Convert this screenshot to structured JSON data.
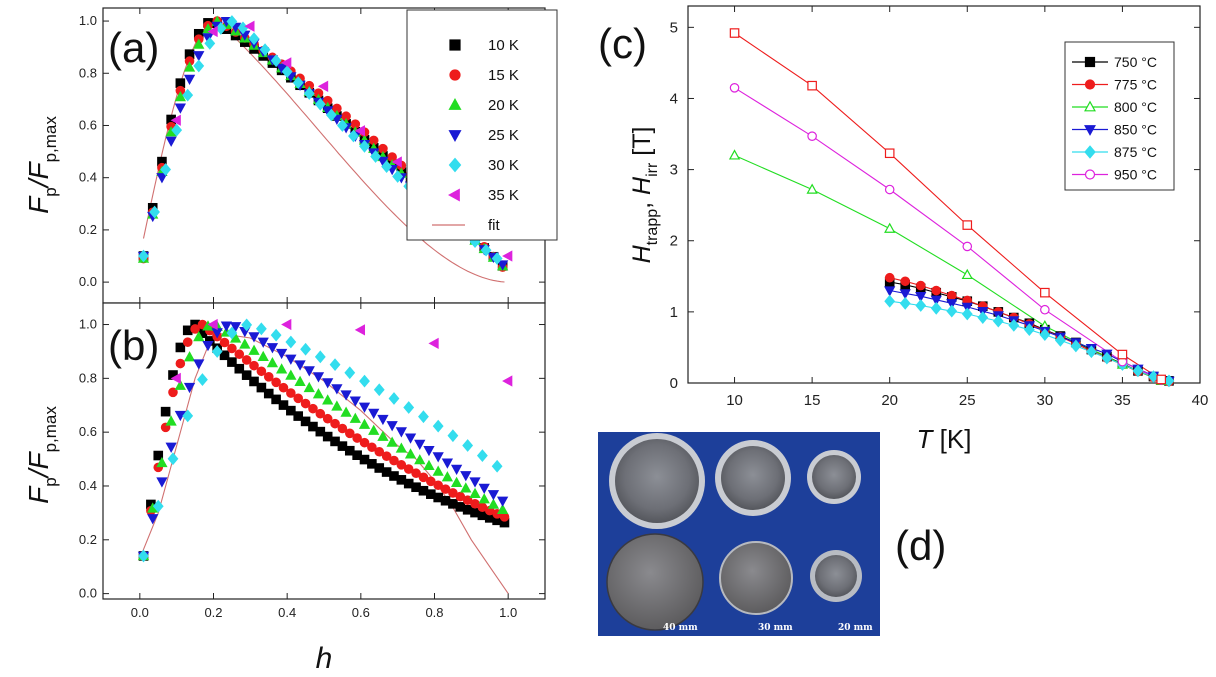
{
  "panel_labels": {
    "a": "(a)",
    "b": "(b)",
    "c": "(c)",
    "d": "(d)"
  },
  "ab_axes": {
    "xlabel": "h",
    "ylabel_main": "F",
    "ylabel_sub1": "p",
    "ylabel_mid": "/F",
    "ylabel_sub2": "p,max"
  },
  "c_axes": {
    "xlabel_main": "T",
    "xlabel_unit": " [K]",
    "ylabel_main1": "H",
    "ylabel_sub1": "trapp",
    "ylabel_mid": ", ",
    "ylabel_main2": "H",
    "ylabel_sub2": "irr",
    "ylabel_unit": " [T]"
  },
  "photo": {
    "captions": [
      "40 mm",
      "30 mm",
      "20 mm"
    ],
    "background": "#1d3f9a"
  },
  "chart_data": [
    {
      "id": "a",
      "type": "scatter",
      "xlim": [
        -0.1,
        1.1
      ],
      "ylim": [
        -0.08,
        1.05
      ],
      "xticks": [
        "0.0",
        "0.2",
        "0.4",
        "0.6",
        "0.8",
        "1.0"
      ],
      "yticks": [
        "0.0",
        "0.2",
        "0.4",
        "0.6",
        "0.8",
        "1.0"
      ],
      "legend": {
        "placement": "top-right",
        "entries": [
          {
            "label": "10 K",
            "marker": "square",
            "color": "#000000"
          },
          {
            "label": "15 K",
            "marker": "circle",
            "color": "#ee1c1c"
          },
          {
            "label": "20 K",
            "marker": "triangle-up",
            "color": "#22dd22"
          },
          {
            "label": "25 K",
            "marker": "triangle-down",
            "color": "#1a1ad4"
          },
          {
            "label": "30 K",
            "marker": "diamond",
            "color": "#33ddee"
          },
          {
            "label": "35 K",
            "marker": "triangle-left",
            "color": "#dd22dd"
          },
          {
            "label": "fit",
            "marker": "line",
            "color": "#d07070"
          }
        ]
      },
      "series": [
        {
          "name": "10 K",
          "color": "#000000",
          "marker": "square",
          "rise_end": 0.2,
          "start": 0.1,
          "end": 0.04,
          "p": 2.1,
          "step": 0.025
        },
        {
          "name": "15 K",
          "color": "#ee1c1c",
          "marker": "circle",
          "rise_end": 0.21,
          "start": 0.09,
          "end": 0.03,
          "p": 2.3,
          "step": 0.025
        },
        {
          "name": "20 K",
          "color": "#22dd22",
          "marker": "triangle-up",
          "rise_end": 0.22,
          "start": 0.09,
          "end": 0.04,
          "p": 2.0,
          "step": 0.025
        },
        {
          "name": "25 K",
          "color": "#1a1ad4",
          "marker": "triangle-down",
          "rise_end": 0.24,
          "start": 0.1,
          "end": 0.05,
          "p": 1.8,
          "step": 0.025
        },
        {
          "name": "30 K",
          "color": "#33ddee",
          "marker": "diamond",
          "rise_end": 0.26,
          "start": 0.1,
          "end": 0.06,
          "p": 1.65,
          "step": 0.03
        },
        {
          "name": "35 K",
          "color": "#dd22dd",
          "marker": "triangle-left",
          "x": [
            0.1,
            0.2,
            0.3,
            0.4,
            0.5,
            0.6,
            0.7,
            0.8,
            0.9,
            1.0
          ],
          "y": [
            0.62,
            0.96,
            0.98,
            0.84,
            0.75,
            0.58,
            0.46,
            0.33,
            0.22,
            0.1
          ]
        }
      ],
      "fit": {
        "name": "fit",
        "color": "#d07070",
        "peak": 0.21,
        "p": 2.6
      }
    },
    {
      "id": "b",
      "type": "scatter",
      "xlim": [
        -0.1,
        1.1
      ],
      "ylim": [
        -0.02,
        1.08
      ],
      "xticks": [
        "0.0",
        "0.2",
        "0.4",
        "0.6",
        "0.8",
        "1.0"
      ],
      "yticks": [
        "0.0",
        "0.2",
        "0.4",
        "0.6",
        "0.8",
        "1.0"
      ],
      "series": [
        {
          "name": "10 K",
          "color": "#000000",
          "marker": "square",
          "rise_end": 0.15,
          "start": 0.14,
          "end": 0.26,
          "p": 1.2,
          "step": 0.02
        },
        {
          "name": "15 K",
          "color": "#ee1c1c",
          "marker": "circle",
          "rise_end": 0.17,
          "start": 0.14,
          "end": 0.28,
          "p": 1.45,
          "step": 0.02
        },
        {
          "name": "20 K",
          "color": "#22dd22",
          "marker": "triangle-up",
          "rise_end": 0.2,
          "start": 0.14,
          "end": 0.3,
          "p": 1.75,
          "step": 0.025
        },
        {
          "name": "25 K",
          "color": "#1a1ad4",
          "marker": "triangle-down",
          "rise_end": 0.25,
          "start": 0.14,
          "end": 0.33,
          "p": 2.0,
          "step": 0.025
        },
        {
          "name": "30 K",
          "color": "#33ddee",
          "marker": "diamond",
          "rise_end": 0.3,
          "start": 0.14,
          "end": 0.44,
          "p": 2.3,
          "step": 0.04
        },
        {
          "name": "35 K",
          "color": "#dd22dd",
          "marker": "triangle-left",
          "x": [
            0.1,
            0.2,
            0.4,
            0.6,
            0.8,
            1.0
          ],
          "y": [
            0.8,
            1.0,
            1.0,
            0.98,
            0.93,
            0.79
          ]
        }
      ],
      "fit": {
        "name": "fit",
        "color": "#d07070",
        "x": [
          0.0,
          0.05,
          0.1,
          0.15,
          0.2,
          0.3,
          0.4,
          0.5,
          0.6,
          0.7,
          0.75,
          0.8,
          0.85,
          0.9,
          0.95,
          1.0
        ],
        "y": [
          0.13,
          0.3,
          0.55,
          0.8,
          0.97,
          0.95,
          0.88,
          0.79,
          0.68,
          0.55,
          0.5,
          0.42,
          0.32,
          0.2,
          0.1,
          0.0
        ]
      }
    },
    {
      "id": "c",
      "type": "line",
      "xlim": [
        7,
        40
      ],
      "ylim": [
        0,
        5.3
      ],
      "xticks": [
        10,
        15,
        20,
        25,
        30,
        35,
        40
      ],
      "yticks": [
        0,
        1,
        2,
        3,
        4,
        5
      ],
      "legend": {
        "placement": "top-right"
      },
      "series": [
        {
          "name": "750 °C",
          "color": "#000000",
          "marker": "square",
          "filled": true,
          "x": [
            20,
            21,
            22,
            23,
            24,
            25,
            26,
            27,
            28,
            29,
            30,
            31,
            32,
            33,
            34,
            35,
            36,
            37,
            38
          ],
          "y": [
            1.42,
            1.38,
            1.33,
            1.27,
            1.21,
            1.15,
            1.08,
            1.0,
            0.92,
            0.84,
            0.75,
            0.66,
            0.57,
            0.47,
            0.37,
            0.27,
            0.17,
            0.09,
            0.03
          ]
        },
        {
          "name": "775 °C",
          "color": "#ee1c1c",
          "marker": "circle",
          "filled": true,
          "x": [
            20,
            21,
            22,
            23,
            24,
            25,
            26,
            27,
            28,
            29,
            30,
            31,
            32,
            33,
            34,
            35,
            36,
            37,
            38
          ],
          "y": [
            1.48,
            1.43,
            1.37,
            1.3,
            1.23,
            1.16,
            1.08,
            1.0,
            0.92,
            0.83,
            0.74,
            0.65,
            0.55,
            0.45,
            0.35,
            0.26,
            0.16,
            0.08,
            0.02
          ]
        },
        {
          "name": "800 °C",
          "color": "#22dd22",
          "marker": "triangle-up",
          "filled": false,
          "x": [
            10,
            15,
            20,
            25,
            30,
            35,
            37.5
          ],
          "y": [
            3.2,
            2.72,
            2.17,
            1.52,
            0.8,
            0.26,
            0.03
          ]
        },
        {
          "name": "850 °C",
          "color": "#1a1ad4",
          "marker": "triangle-down",
          "filled": true,
          "x": [
            20,
            21,
            22,
            23,
            24,
            25,
            26,
            27,
            28,
            29,
            30,
            31,
            32,
            33,
            34,
            35,
            36,
            37,
            38
          ],
          "y": [
            1.3,
            1.26,
            1.22,
            1.17,
            1.12,
            1.07,
            1.01,
            0.95,
            0.88,
            0.81,
            0.73,
            0.65,
            0.57,
            0.49,
            0.41,
            0.3,
            0.2,
            0.1,
            0.03
          ]
        },
        {
          "name": "875 °C",
          "color": "#33ddee",
          "marker": "diamond",
          "filled": true,
          "x": [
            20,
            21,
            22,
            23,
            24,
            25,
            26,
            27,
            28,
            29,
            30,
            31,
            32,
            33,
            34,
            35,
            36,
            37,
            38
          ],
          "y": [
            1.15,
            1.12,
            1.09,
            1.05,
            1.01,
            0.97,
            0.92,
            0.87,
            0.81,
            0.75,
            0.68,
            0.6,
            0.52,
            0.44,
            0.35,
            0.26,
            0.17,
            0.09,
            0.03
          ]
        },
        {
          "name": "950 °C",
          "color": "#dd22dd",
          "marker": "circle",
          "filled": false,
          "x": [
            10,
            15,
            20,
            25,
            30,
            35,
            37.5
          ],
          "y": [
            4.15,
            3.47,
            2.72,
            1.92,
            1.03,
            0.3,
            0.04
          ]
        },
        {
          "name": "",
          "color": "#ee1c1c",
          "marker": "square",
          "filled": false,
          "x": [
            10,
            15,
            20,
            25,
            30,
            35,
            37.5
          ],
          "y": [
            4.92,
            4.18,
            3.23,
            2.22,
            1.27,
            0.4,
            0.05
          ]
        }
      ]
    }
  ]
}
